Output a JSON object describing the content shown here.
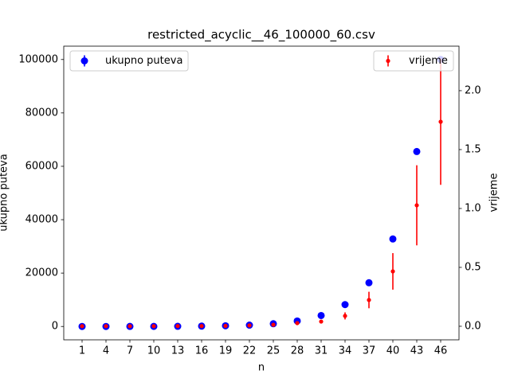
{
  "chart_data": {
    "type": "errorbar",
    "title": "restricted_acyclic__46_100000_60.csv",
    "xlabel": "n",
    "ylabel": "ukupno puteva",
    "y2label": "vrijeme",
    "x": [
      1,
      4,
      7,
      10,
      13,
      16,
      19,
      22,
      25,
      28,
      31,
      34,
      37,
      40,
      43,
      46
    ],
    "xlim": [
      -1.3,
      48.3
    ],
    "xticks": [
      1,
      4,
      7,
      10,
      13,
      16,
      19,
      22,
      25,
      28,
      31,
      34,
      37,
      40,
      43,
      46
    ],
    "ylim": [
      -5000,
      105000
    ],
    "yticks": [
      0,
      20000,
      40000,
      60000,
      80000,
      100000
    ],
    "y2lim": [
      -0.115,
      2.378
    ],
    "y2ticks": [
      {
        "value": 0,
        "label": "0.0"
      },
      0.5,
      {
        "value": 1,
        "label": "1.0"
      },
      1.5,
      {
        "value": 2,
        "label": "2.0"
      }
    ],
    "series": [
      {
        "name": "ukupno puteva",
        "color": "#0000ff",
        "legend": "upper left",
        "values": [
          4,
          8,
          16,
          32,
          64,
          128,
          256,
          512,
          1024,
          2048,
          4096,
          8192,
          16384,
          32768,
          65536,
          100000
        ]
      },
      {
        "name": "vrijeme",
        "color": "#ff0000",
        "axis": "y2",
        "legend": "upper right",
        "values": [
          0.001,
          0.001,
          0.001,
          0.001,
          0.002,
          0.002,
          0.003,
          0.007,
          0.013,
          0.027,
          0.04,
          0.088,
          0.223,
          0.466,
          1.027,
          1.736
        ],
        "errors": [
          0,
          0,
          0,
          0,
          0,
          0,
          0.001,
          0.002,
          0.004,
          0.005,
          0.01,
          0.03,
          0.07,
          0.155,
          0.34,
          0.535
        ]
      }
    ]
  }
}
